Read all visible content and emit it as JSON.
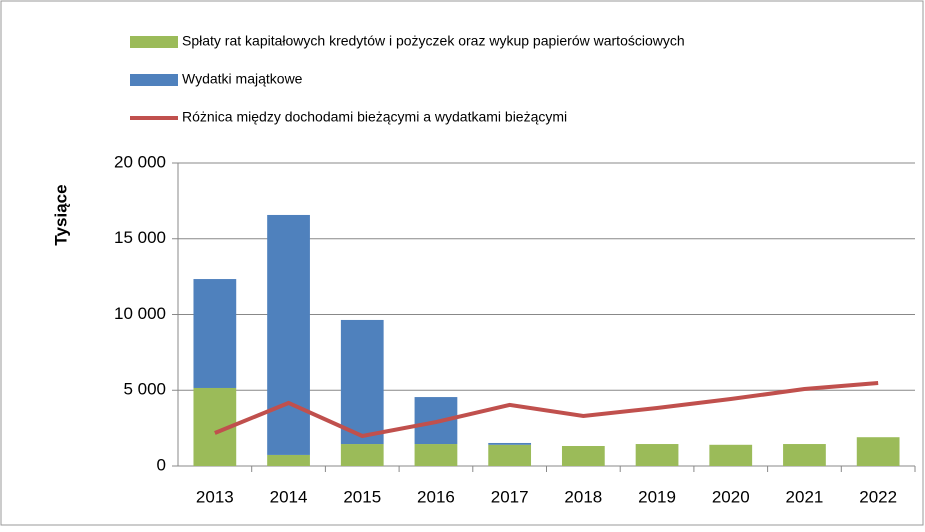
{
  "chart_data": {
    "type": "bar",
    "stacked": true,
    "y_label": "Tysiące",
    "categories": [
      "2013",
      "2014",
      "2015",
      "2016",
      "2017",
      "2018",
      "2019",
      "2020",
      "2021",
      "2022"
    ],
    "series": [
      {
        "name": "Spłaty rat kapitałowych kredytów i pożyczek oraz wykup papierów wartościowych",
        "type": "bar",
        "color": "#9bbb59",
        "values": [
          5150,
          730,
          1450,
          1450,
          1400,
          1320,
          1450,
          1400,
          1450,
          1900
        ]
      },
      {
        "name": "Wydatki majątkowe",
        "type": "bar",
        "color": "#4f81bd",
        "values": [
          7190,
          15840,
          8190,
          3100,
          120,
          0,
          0,
          0,
          0,
          0
        ]
      },
      {
        "name": "Różnica między dochodami bieżącymi a wydatkami bieżącymi",
        "type": "line",
        "color": "#c0504d",
        "values": [
          2180,
          4160,
          1980,
          2900,
          4030,
          3300,
          3830,
          4420,
          5080,
          5480
        ]
      }
    ],
    "ylim": [
      0,
      20000
    ],
    "yticks": [
      0,
      {
        "value": 5000,
        "label": "5 000"
      },
      {
        "value": 10000,
        "label": "10 000"
      },
      {
        "value": 15000,
        "label": "15 000"
      },
      {
        "value": 20000,
        "label": "20 000"
      }
    ],
    "grid": true,
    "legend": "top"
  }
}
